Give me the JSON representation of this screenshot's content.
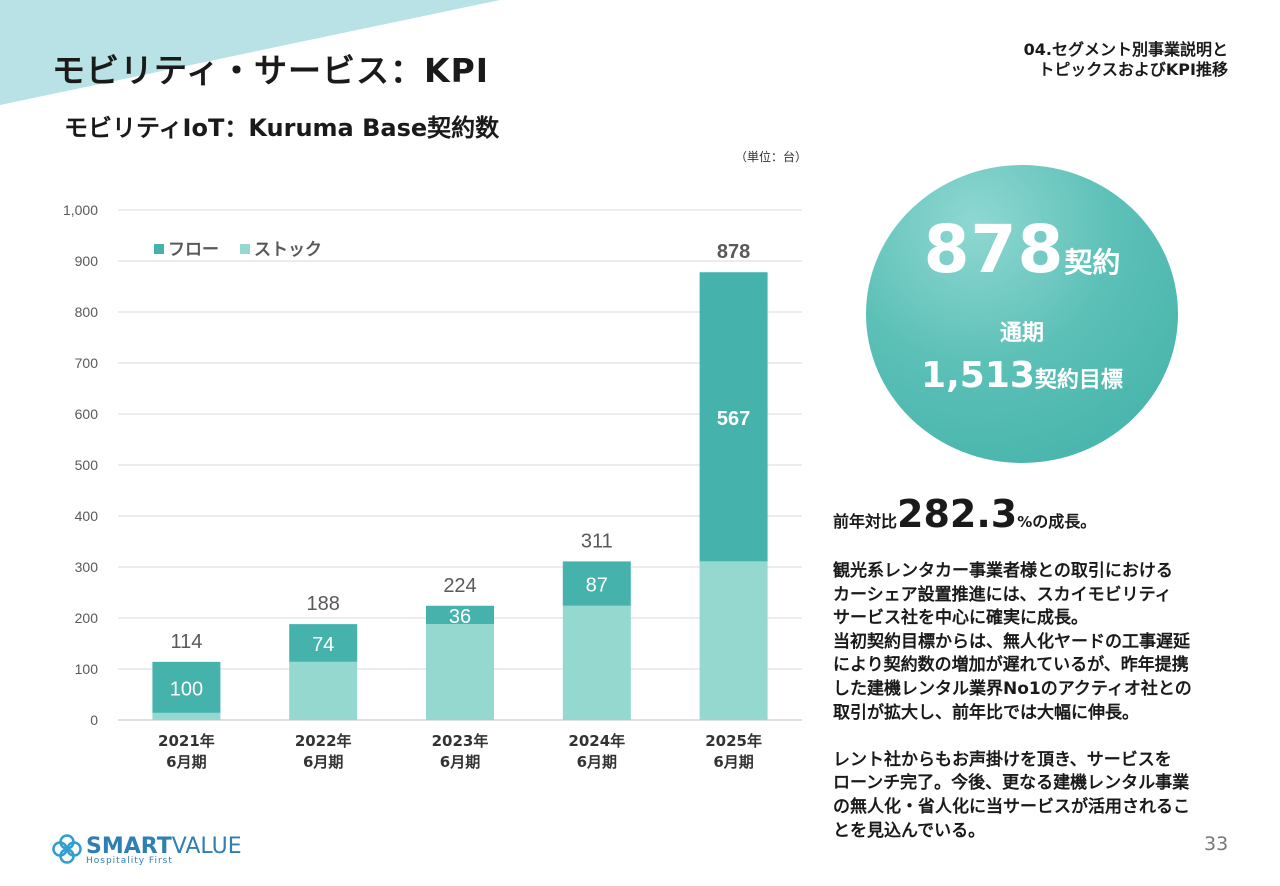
{
  "header": {
    "title": "モビリティ・サービス：KPI",
    "section_line1": "04.セグメント別事業説明と",
    "section_line2": "トピックスおよびKPI推移"
  },
  "subtitle": "モビリティIoT：Kuruma Base契約数",
  "unit_note": "（単位：台）",
  "chart_data": {
    "type": "bar",
    "stacked": true,
    "categories": [
      [
        "2021年",
        "6月期"
      ],
      [
        "2022年",
        "6月期"
      ],
      [
        "2023年",
        "6月期"
      ],
      [
        "2024年",
        "6月期"
      ],
      [
        "2025年",
        "6月期"
      ]
    ],
    "series": [
      {
        "name": "ストック",
        "color": "#95d8d0",
        "values": [
          14,
          114,
          188,
          224,
          311
        ]
      },
      {
        "name": "フロー",
        "color": "#45b3ac",
        "values": [
          100,
          74,
          36,
          87,
          567
        ]
      }
    ],
    "totals": [
      114,
      188,
      224,
      311,
      878
    ],
    "flow_labels": [
      "100",
      "74",
      "36",
      "87",
      "567"
    ],
    "total_labels": [
      "114",
      "188",
      "224",
      "311",
      "878"
    ],
    "ylim": [
      0,
      1000
    ],
    "yticks": [
      0,
      100,
      200,
      300,
      400,
      500,
      600,
      700,
      800,
      900,
      1000
    ],
    "ytick_labels": [
      "0",
      "100",
      "200",
      "300",
      "400",
      "500",
      "600",
      "700",
      "800",
      "900",
      "1,000"
    ],
    "legend": [
      "フロー",
      "ストック"
    ],
    "legend_position": "top-left",
    "grid": true
  },
  "highlight": {
    "value": "878",
    "value_unit": "契約",
    "label": "通期",
    "target": "1,513",
    "target_unit": "契約目標"
  },
  "growth": {
    "prefix": "前年対比",
    "value": "282.3",
    "percent": "%",
    "suffix": "の成長。"
  },
  "body_paragraphs": [
    [
      "観光系レンタカー事業者様との取引における",
      "カーシェア設置推進には、スカイモビリティ",
      "サービス社を中心に確実に成長。",
      "当初契約目標からは、無人化ヤードの工事遅延",
      "により契約数の増加が遅れているが、昨年提携",
      "した建機レンタル業界No1のアクティオ社との",
      "取引が拡大し、前年比では大幅に伸長。"
    ],
    [
      "レント社からもお声掛けを頂き、サービスを",
      "ローンチ完了。今後、更なる建機レンタル事業",
      "の無人化・省人化に当サービスが活用されるこ",
      "とを見込んでいる。"
    ]
  ],
  "page_number": "33",
  "logo": {
    "name_bold": "SMART",
    "name_light": "VALUE",
    "tagline": "Hospitality First"
  },
  "colors": {
    "accent": "#45b3ac",
    "accent_light": "#95d8d0",
    "deco": "#b9e2e6",
    "brand": "#2f7fb5"
  }
}
